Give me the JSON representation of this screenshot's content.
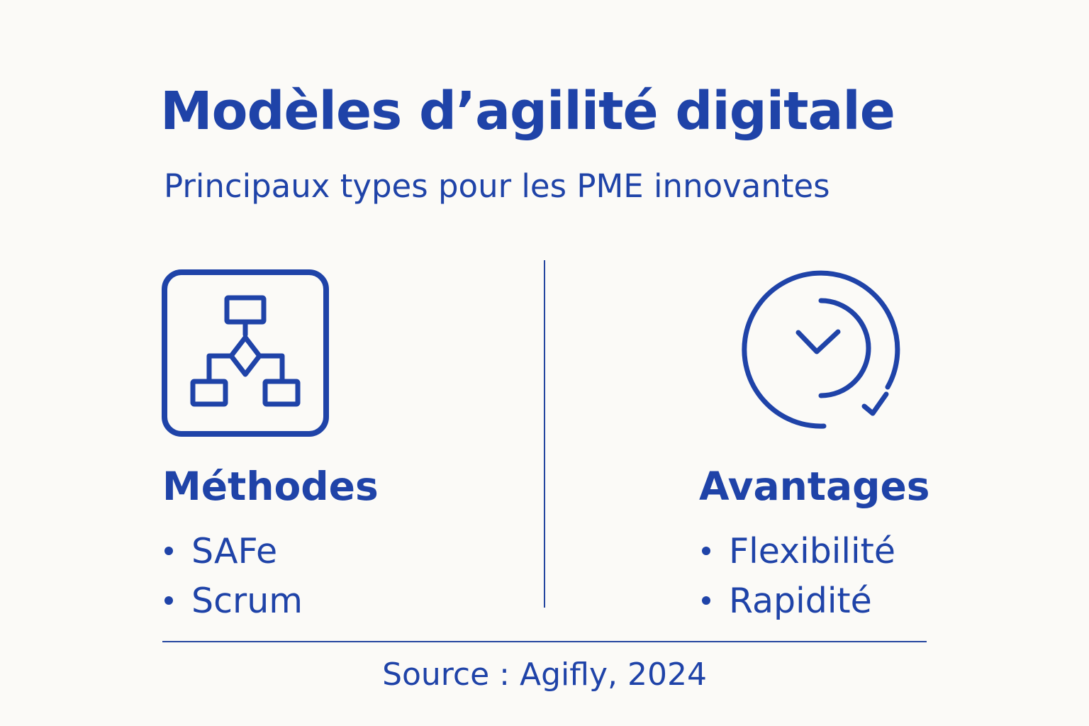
{
  "header": {
    "title": "Modèles d’agilité digitale",
    "subtitle": "Principaux types pour les PME innovantes"
  },
  "sections": {
    "methodes": {
      "icon": "hierarchy-chart-icon",
      "title": "Méthodes",
      "items": [
        "SAFe",
        "Scrum"
      ]
    },
    "avantages": {
      "icon": "clock-refresh-icon",
      "title": "Avantages",
      "items": [
        "Flexibilité",
        "Rapidité"
      ]
    }
  },
  "footer": {
    "source": "Source : Agifly, 2024"
  },
  "colors": {
    "primary": "#1f43a8",
    "background": "#fbfaf7"
  }
}
